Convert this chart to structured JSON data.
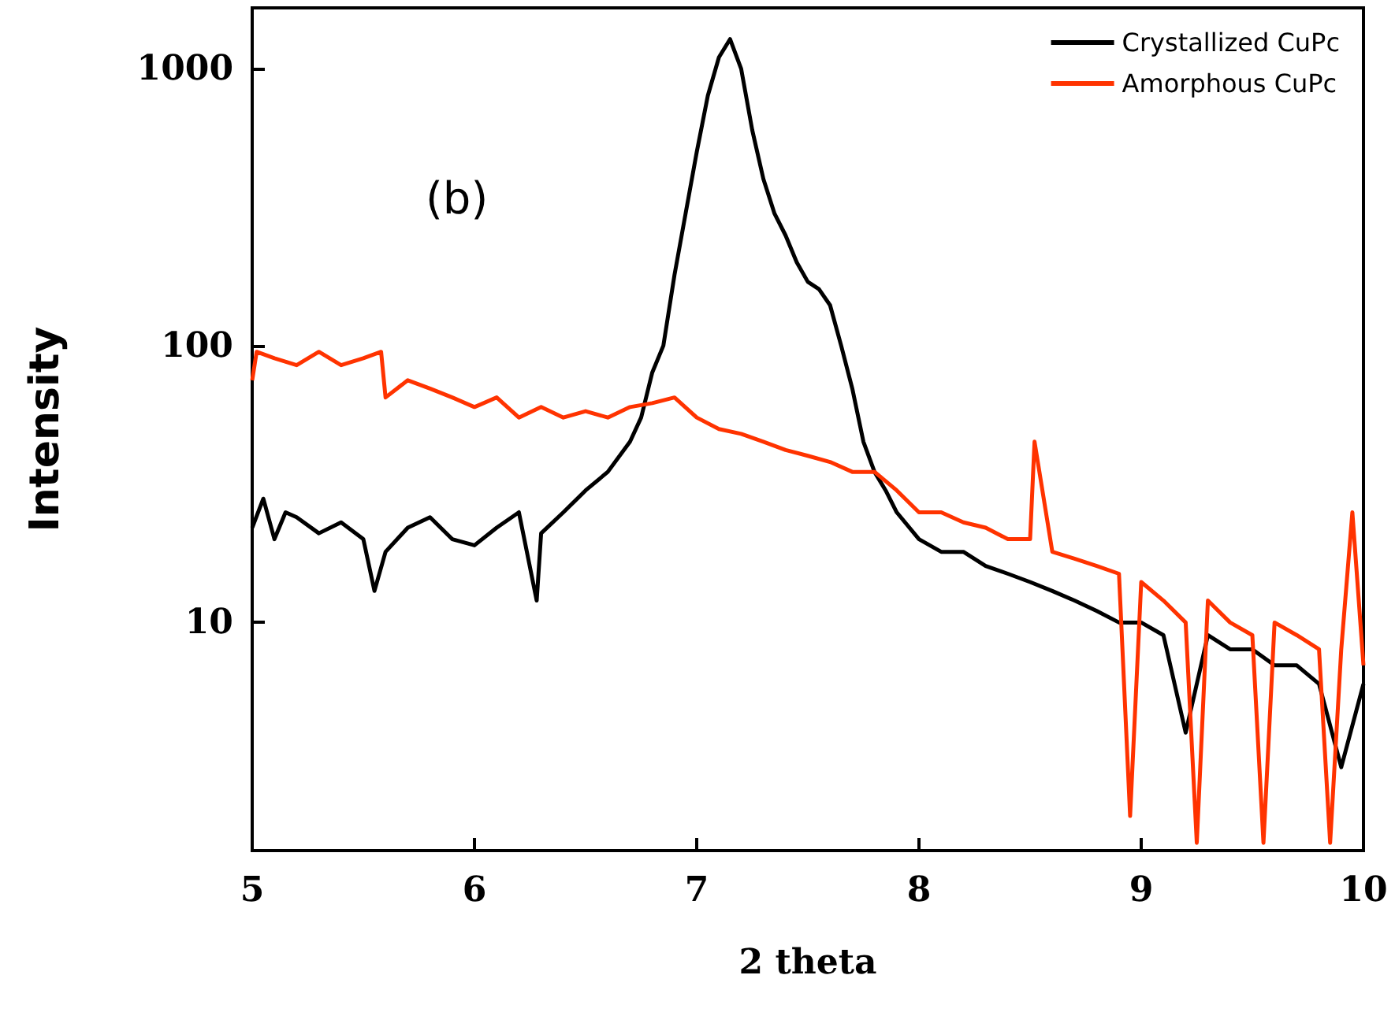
{
  "chart_data": {
    "type": "line",
    "xlabel": "2 theta",
    "ylabel": "Intensity",
    "annotations": [
      "(b)"
    ],
    "log": "y",
    "grid": false,
    "legend": "top right",
    "marker": "none",
    "line_style": "solid",
    "xlim": [
      5,
      10
    ],
    "xticks": [
      5,
      6,
      7,
      8,
      9,
      10
    ],
    "ylim": [
      1.5,
      1660
    ],
    "yticks": [
      10,
      100,
      1000
    ],
    "series": [
      {
        "name": "Crystallized CuPc",
        "color": "#000000",
        "x": [
          5.0,
          5.05,
          5.1,
          5.15,
          5.2,
          5.3,
          5.4,
          5.5,
          5.55,
          5.6,
          5.7,
          5.8,
          5.9,
          6.0,
          6.1,
          6.2,
          6.28,
          6.3,
          6.4,
          6.5,
          6.6,
          6.7,
          6.75,
          6.8,
          6.85,
          6.9,
          6.95,
          7.0,
          7.05,
          7.1,
          7.15,
          7.2,
          7.25,
          7.3,
          7.35,
          7.4,
          7.45,
          7.5,
          7.55,
          7.6,
          7.65,
          7.7,
          7.75,
          7.8,
          7.85,
          7.9,
          8.0,
          8.1,
          8.2,
          8.3,
          8.4,
          8.5,
          8.6,
          8.7,
          8.8,
          8.9,
          9.0,
          9.1,
          9.2,
          9.3,
          9.4,
          9.5,
          9.6,
          9.7,
          9.8,
          9.9,
          10.0
        ],
        "values": [
          22,
          28,
          20,
          25,
          24,
          21,
          23,
          20,
          13,
          18,
          22,
          24,
          20,
          19,
          22,
          25,
          12,
          21,
          25,
          30,
          35,
          45,
          55,
          80,
          100,
          180,
          300,
          500,
          800,
          1100,
          1280,
          1000,
          600,
          400,
          300,
          250,
          200,
          170,
          160,
          140,
          100,
          70,
          45,
          35,
          30,
          25,
          20,
          18,
          18,
          16,
          15,
          14,
          13,
          12,
          11,
          10,
          10,
          9,
          4,
          9,
          8,
          8,
          7,
          7,
          6,
          3,
          6
        ]
      },
      {
        "name": "Amorphous CuPc",
        "color": "#ff3300",
        "x": [
          5.0,
          5.02,
          5.1,
          5.2,
          5.3,
          5.4,
          5.5,
          5.58,
          5.6,
          5.7,
          5.8,
          5.9,
          6.0,
          6.1,
          6.2,
          6.3,
          6.4,
          6.5,
          6.6,
          6.7,
          6.8,
          6.9,
          7.0,
          7.1,
          7.2,
          7.3,
          7.4,
          7.5,
          7.6,
          7.7,
          7.8,
          7.9,
          8.0,
          8.1,
          8.2,
          8.3,
          8.4,
          8.5,
          8.52,
          8.6,
          8.7,
          8.8,
          8.9,
          8.95,
          9.0,
          9.1,
          9.2,
          9.25,
          9.3,
          9.4,
          9.5,
          9.55,
          9.6,
          9.7,
          9.8,
          9.85,
          9.9,
          9.95,
          10.0
        ],
        "values": [
          75,
          95,
          90,
          85,
          95,
          85,
          90,
          95,
          65,
          75,
          70,
          65,
          60,
          65,
          55,
          60,
          55,
          58,
          55,
          60,
          62,
          65,
          55,
          50,
          48,
          45,
          42,
          40,
          38,
          35,
          35,
          30,
          25,
          25,
          23,
          22,
          20,
          20,
          45,
          18,
          17,
          16,
          15,
          2,
          14,
          12,
          10,
          1.6,
          12,
          10,
          9,
          1.6,
          10,
          9,
          8,
          1.6,
          8,
          25,
          7
        ]
      }
    ]
  }
}
